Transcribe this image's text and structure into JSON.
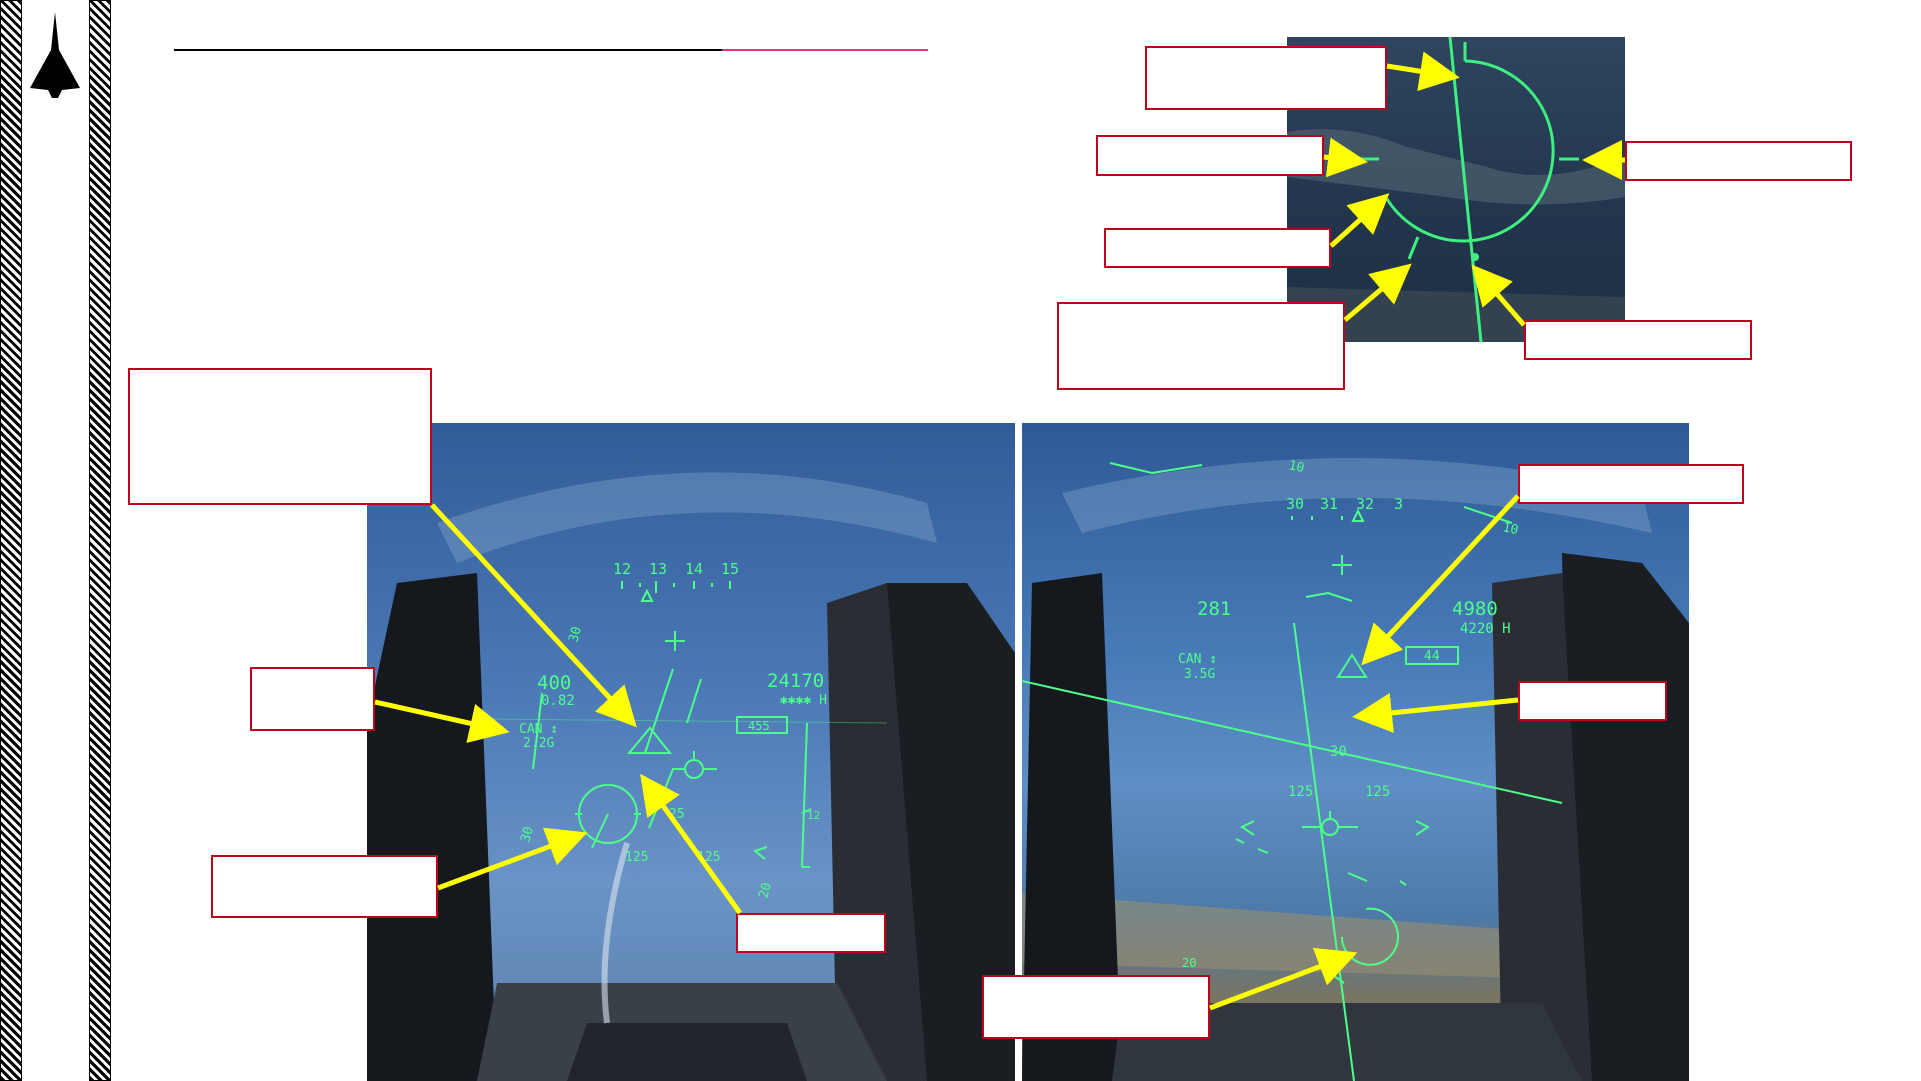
{
  "page": {
    "logo_icon": "delta-wing-jet-icon",
    "title_rule_colors": [
      "#000000",
      "#e8336d"
    ]
  },
  "colors": {
    "callout_border": "#c0001a",
    "arrow": "#ffff00",
    "hud_symbology": "#4dff8a",
    "sky": "#3d6aa8"
  },
  "hud_left": {
    "heading_tape": [
      "12",
      "13",
      "14",
      "15"
    ],
    "airspeed": "400",
    "mach": "0.82",
    "pitch_upper": "30",
    "pitch_lower": "30",
    "weapon_mode": "CAN ↕",
    "g_load": "2.2G",
    "altitude": "24170",
    "altitude_sub": "✱✱✱✱ H",
    "boxed_value": "455",
    "scale_marker": "12",
    "scale_bottom": "20",
    "range_a": "125",
    "range_b": "125",
    "range_c": "25"
  },
  "hud_right": {
    "heading_tape": [
      "30",
      "31",
      "32",
      "3"
    ],
    "bank_top": "10",
    "bank_right": "10",
    "airspeed": "281",
    "weapon_mode": "CAN ↕",
    "g_load": "3.5G",
    "altitude": "4980",
    "altitude_sub": "4220 H",
    "boxed_value": "44",
    "pitch_label": "30",
    "range_left": "125",
    "range_right": "125",
    "lower_label": "20"
  }
}
